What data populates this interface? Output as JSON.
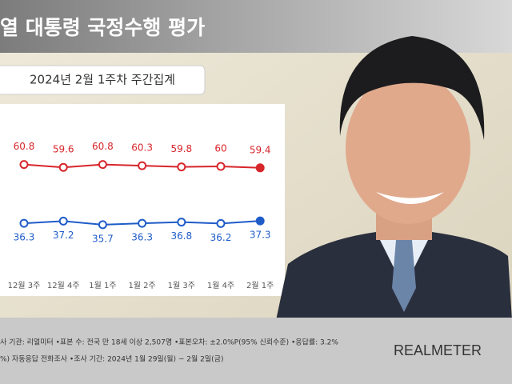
{
  "header": {
    "title": "열 대통령 국정수행 평가",
    "subtitle": "2024년 2월 1주차 주간집계"
  },
  "chart_data": {
    "type": "line",
    "categories": [
      "12월 3주",
      "12월 4주",
      "1월 1주",
      "1월 2주",
      "1월 3주",
      "1월 4주",
      "2월 1주"
    ],
    "series": [
      {
        "color": "#d7262b",
        "values": [
          60.8,
          59.6,
          60.8,
          60.3,
          59.8,
          60.0,
          59.4
        ]
      },
      {
        "color": "#1f5cc8",
        "values": [
          36.3,
          37.2,
          35.7,
          36.3,
          36.8,
          36.2,
          37.3
        ]
      }
    ]
  },
  "footer": {
    "line1": "사 기관: 리얼미터 •표본 수: 전국 만 18세 이상 2,507명 •표본오차: ±2.0%P(95% 신뢰수준) •응답률: 3.2%",
    "line2": "%) 자동응답 전화조사 •조사 기간: 2024년 1월 29일(월) ~ 2월 2일(금)",
    "brand": "REALMETER"
  }
}
